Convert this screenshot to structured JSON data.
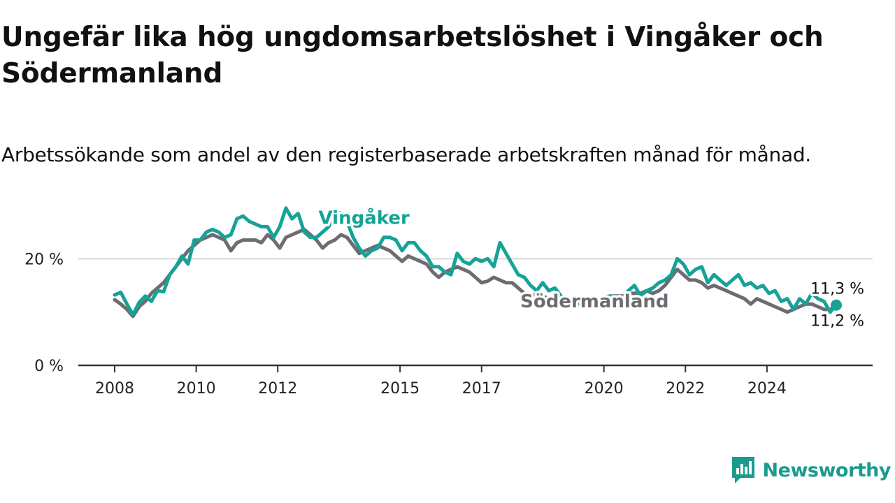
{
  "colors": {
    "vingaker": "#16a397",
    "sodermanland": "#6d6c72",
    "grid": "#d9d9d9",
    "axis": "#333333"
  },
  "chart_data": {
    "type": "line",
    "title": "Ungefär lika hög ungdomsarbetslöshet i Vingåker och Södermanland",
    "subtitle": "Arbetssökande som andel av den registerbaserade arbetskraften månad för månad.",
    "xlabel": "",
    "ylabel": "",
    "xlim": [
      2008.0,
      2025.7
    ],
    "ylim": [
      0,
      30
    ],
    "x_ticks": [
      2008,
      2010,
      2012,
      2015,
      2017,
      2020,
      2022,
      2024
    ],
    "y_ticks": [
      {
        "value": 0,
        "label": "0 %"
      },
      {
        "value": 20,
        "label": "20 %"
      }
    ],
    "grid": true,
    "legend": "direct-labels",
    "series": [
      {
        "name": "Vingåker",
        "color": "#16a397",
        "end_label": "11,3 %",
        "points": [
          [
            2008.0,
            13.2
          ],
          [
            2008.15,
            13.7
          ],
          [
            2008.3,
            11.5
          ],
          [
            2008.45,
            9.5
          ],
          [
            2008.6,
            11.8
          ],
          [
            2008.75,
            13.0
          ],
          [
            2008.9,
            12.0
          ],
          [
            2009.05,
            14.0
          ],
          [
            2009.2,
            13.8
          ],
          [
            2009.35,
            17.0
          ],
          [
            2009.5,
            18.5
          ],
          [
            2009.65,
            20.5
          ],
          [
            2009.8,
            19.0
          ],
          [
            2009.95,
            23.5
          ],
          [
            2010.1,
            23.5
          ],
          [
            2010.25,
            25.0
          ],
          [
            2010.4,
            25.5
          ],
          [
            2010.55,
            25.0
          ],
          [
            2010.7,
            24.0
          ],
          [
            2010.85,
            24.5
          ],
          [
            2011.0,
            27.5
          ],
          [
            2011.15,
            28.0
          ],
          [
            2011.3,
            27.0
          ],
          [
            2011.45,
            26.5
          ],
          [
            2011.6,
            26.0
          ],
          [
            2011.75,
            26.0
          ],
          [
            2011.9,
            24.0
          ],
          [
            2012.05,
            26.0
          ],
          [
            2012.2,
            29.5
          ],
          [
            2012.35,
            27.5
          ],
          [
            2012.5,
            28.5
          ],
          [
            2012.65,
            25.0
          ],
          [
            2012.8,
            24.0
          ],
          [
            2012.95,
            24.0
          ],
          [
            2013.1,
            25.0
          ],
          [
            2013.25,
            26.0
          ],
          [
            2013.4,
            29.0
          ],
          [
            2013.55,
            28.5
          ],
          [
            2013.7,
            27.0
          ],
          [
            2013.85,
            24.0
          ],
          [
            2014.0,
            22.0
          ],
          [
            2014.15,
            20.5
          ],
          [
            2014.3,
            21.5
          ],
          [
            2014.45,
            22.0
          ],
          [
            2014.6,
            24.0
          ],
          [
            2014.75,
            24.0
          ],
          [
            2014.9,
            23.5
          ],
          [
            2015.05,
            21.5
          ],
          [
            2015.2,
            23.0
          ],
          [
            2015.35,
            23.0
          ],
          [
            2015.5,
            21.5
          ],
          [
            2015.65,
            20.5
          ],
          [
            2015.8,
            18.5
          ],
          [
            2015.95,
            18.5
          ],
          [
            2016.1,
            17.5
          ],
          [
            2016.25,
            17.0
          ],
          [
            2016.4,
            21.0
          ],
          [
            2016.55,
            19.5
          ],
          [
            2016.7,
            19.0
          ],
          [
            2016.85,
            20.0
          ],
          [
            2017.0,
            19.5
          ],
          [
            2017.15,
            20.0
          ],
          [
            2017.3,
            18.5
          ],
          [
            2017.45,
            23.0
          ],
          [
            2017.6,
            21.0
          ],
          [
            2017.75,
            19.0
          ],
          [
            2017.9,
            17.0
          ],
          [
            2018.05,
            16.5
          ],
          [
            2018.2,
            15.0
          ],
          [
            2018.35,
            14.0
          ],
          [
            2018.5,
            15.5
          ],
          [
            2018.65,
            14.0
          ],
          [
            2018.8,
            14.5
          ],
          [
            2018.95,
            13.0
          ],
          [
            2019.1,
            12.5
          ],
          [
            2019.25,
            12.0
          ],
          [
            2019.4,
            11.5
          ],
          [
            2019.55,
            11.8
          ],
          [
            2019.7,
            12.0
          ],
          [
            2019.85,
            12.5
          ],
          [
            2020.0,
            12.8
          ],
          [
            2020.15,
            13.0
          ],
          [
            2020.3,
            12.0
          ],
          [
            2020.45,
            12.5
          ],
          [
            2020.6,
            14.0
          ],
          [
            2020.75,
            15.0
          ],
          [
            2020.9,
            13.0
          ],
          [
            2021.05,
            14.0
          ],
          [
            2021.2,
            14.5
          ],
          [
            2021.35,
            15.5
          ],
          [
            2021.5,
            16.0
          ],
          [
            2021.65,
            17.0
          ],
          [
            2021.8,
            20.0
          ],
          [
            2021.95,
            19.0
          ],
          [
            2022.1,
            17.0
          ],
          [
            2022.25,
            18.0
          ],
          [
            2022.4,
            18.5
          ],
          [
            2022.55,
            15.5
          ],
          [
            2022.7,
            17.0
          ],
          [
            2022.85,
            16.0
          ],
          [
            2023.0,
            15.0
          ],
          [
            2023.15,
            16.0
          ],
          [
            2023.3,
            17.0
          ],
          [
            2023.45,
            15.0
          ],
          [
            2023.6,
            15.5
          ],
          [
            2023.75,
            14.5
          ],
          [
            2023.9,
            15.0
          ],
          [
            2024.05,
            13.5
          ],
          [
            2024.2,
            14.0
          ],
          [
            2024.35,
            12.0
          ],
          [
            2024.5,
            12.5
          ],
          [
            2024.65,
            10.5
          ],
          [
            2024.8,
            12.5
          ],
          [
            2024.95,
            11.5
          ],
          [
            2025.1,
            13.5
          ],
          [
            2025.25,
            12.5
          ],
          [
            2025.4,
            12.0
          ],
          [
            2025.55,
            10.0
          ],
          [
            2025.7,
            11.3
          ]
        ]
      },
      {
        "name": "Södermanland",
        "color": "#6d6c72",
        "end_label": "11,2 %",
        "points": [
          [
            2008.0,
            12.3
          ],
          [
            2008.15,
            11.5
          ],
          [
            2008.3,
            10.5
          ],
          [
            2008.45,
            9.2
          ],
          [
            2008.6,
            11.0
          ],
          [
            2008.75,
            12.0
          ],
          [
            2008.9,
            13.5
          ],
          [
            2009.05,
            14.5
          ],
          [
            2009.2,
            15.5
          ],
          [
            2009.35,
            17.0
          ],
          [
            2009.5,
            18.5
          ],
          [
            2009.65,
            20.0
          ],
          [
            2009.8,
            21.5
          ],
          [
            2009.95,
            22.5
          ],
          [
            2010.1,
            23.5
          ],
          [
            2010.25,
            24.0
          ],
          [
            2010.4,
            24.5
          ],
          [
            2010.55,
            24.0
          ],
          [
            2010.7,
            23.5
          ],
          [
            2010.85,
            21.5
          ],
          [
            2011.0,
            23.0
          ],
          [
            2011.15,
            23.5
          ],
          [
            2011.3,
            23.5
          ],
          [
            2011.45,
            23.5
          ],
          [
            2011.6,
            23.0
          ],
          [
            2011.75,
            24.5
          ],
          [
            2011.9,
            23.5
          ],
          [
            2012.05,
            22.0
          ],
          [
            2012.2,
            24.0
          ],
          [
            2012.35,
            24.5
          ],
          [
            2012.5,
            25.0
          ],
          [
            2012.65,
            25.5
          ],
          [
            2012.8,
            24.5
          ],
          [
            2012.95,
            23.5
          ],
          [
            2013.1,
            22.0
          ],
          [
            2013.25,
            23.0
          ],
          [
            2013.4,
            23.5
          ],
          [
            2013.55,
            24.5
          ],
          [
            2013.7,
            24.0
          ],
          [
            2013.85,
            22.5
          ],
          [
            2014.0,
            21.0
          ],
          [
            2014.15,
            21.5
          ],
          [
            2014.3,
            22.0
          ],
          [
            2014.45,
            22.5
          ],
          [
            2014.6,
            22.0
          ],
          [
            2014.75,
            21.5
          ],
          [
            2014.9,
            20.5
          ],
          [
            2015.05,
            19.5
          ],
          [
            2015.2,
            20.5
          ],
          [
            2015.35,
            20.0
          ],
          [
            2015.5,
            19.5
          ],
          [
            2015.65,
            19.0
          ],
          [
            2015.8,
            17.5
          ],
          [
            2015.95,
            16.5
          ],
          [
            2016.1,
            17.5
          ],
          [
            2016.25,
            18.0
          ],
          [
            2016.4,
            18.5
          ],
          [
            2016.55,
            18.0
          ],
          [
            2016.7,
            17.5
          ],
          [
            2016.85,
            16.5
          ],
          [
            2017.0,
            15.5
          ],
          [
            2017.15,
            15.8
          ],
          [
            2017.3,
            16.5
          ],
          [
            2017.45,
            16.0
          ],
          [
            2017.6,
            15.5
          ],
          [
            2017.75,
            15.5
          ],
          [
            2017.9,
            14.5
          ],
          [
            2018.05,
            13.5
          ],
          [
            2018.2,
            13.0
          ],
          [
            2018.35,
            13.5
          ],
          [
            2018.5,
            13.0
          ],
          [
            2018.65,
            12.5
          ],
          [
            2018.8,
            12.0
          ],
          [
            2018.95,
            12.0
          ],
          [
            2019.1,
            11.8
          ],
          [
            2019.25,
            11.5
          ],
          [
            2019.4,
            11.8
          ],
          [
            2019.55,
            12.0
          ],
          [
            2019.7,
            12.2
          ],
          [
            2019.85,
            12.5
          ],
          [
            2020.0,
            12.8
          ],
          [
            2020.15,
            13.0
          ],
          [
            2020.3,
            13.0
          ],
          [
            2020.45,
            13.0
          ],
          [
            2020.6,
            13.5
          ],
          [
            2020.75,
            13.5
          ],
          [
            2020.9,
            13.5
          ],
          [
            2021.05,
            14.0
          ],
          [
            2021.2,
            13.5
          ],
          [
            2021.35,
            14.0
          ],
          [
            2021.5,
            15.0
          ],
          [
            2021.65,
            16.5
          ],
          [
            2021.8,
            18.0
          ],
          [
            2021.95,
            17.0
          ],
          [
            2022.1,
            16.0
          ],
          [
            2022.25,
            16.0
          ],
          [
            2022.4,
            15.5
          ],
          [
            2022.55,
            14.5
          ],
          [
            2022.7,
            15.0
          ],
          [
            2022.85,
            14.5
          ],
          [
            2023.0,
            14.0
          ],
          [
            2023.15,
            13.5
          ],
          [
            2023.3,
            13.0
          ],
          [
            2023.45,
            12.5
          ],
          [
            2023.6,
            11.5
          ],
          [
            2023.75,
            12.5
          ],
          [
            2023.9,
            12.0
          ],
          [
            2024.05,
            11.5
          ],
          [
            2024.2,
            11.0
          ],
          [
            2024.35,
            10.5
          ],
          [
            2024.5,
            10.0
          ],
          [
            2024.65,
            10.5
          ],
          [
            2024.8,
            11.0
          ],
          [
            2024.95,
            11.5
          ],
          [
            2025.1,
            11.5
          ],
          [
            2025.25,
            11.0
          ],
          [
            2025.4,
            10.5
          ],
          [
            2025.55,
            10.5
          ],
          [
            2025.7,
            11.2
          ]
        ]
      }
    ]
  },
  "brand": {
    "name": "Newsworthy"
  }
}
